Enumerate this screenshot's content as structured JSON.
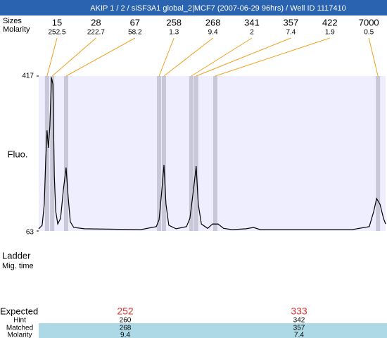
{
  "title": "AKIP 1 / 2 / siSF3A1 global_2|MCF7 (2007-06-29 96hrs) / Well ID 1117410",
  "peak_table": {
    "row_labels": [
      "Sizes",
      "Molarity"
    ],
    "sizes": [
      15,
      28,
      67,
      258,
      268,
      341,
      357,
      422,
      7000
    ],
    "molarity": [
      252.5,
      222.7,
      58.2,
      1.3,
      9.4,
      2,
      7.4,
      1.9,
      0.5
    ],
    "positions": [
      2.4,
      3.9,
      7.9,
      34.7,
      36.1,
      44.0,
      45.4,
      50.9,
      97.8
    ]
  },
  "chart_data": {
    "type": "line",
    "y_label": "Fluo.",
    "ylim": [
      63,
      417
    ],
    "yticks": [
      63,
      417
    ],
    "xlim": [
      0,
      100
    ],
    "x": [
      0,
      1.0,
      1.6,
      2.0,
      2.4,
      2.8,
      3.2,
      3.7,
      4.1,
      4.5,
      4.9,
      5.5,
      6.3,
      7.1,
      7.9,
      8.5,
      9.1,
      10.1,
      13.2,
      29.4,
      33.9,
      34.7,
      35.5,
      36.1,
      36.7,
      37.5,
      39.6,
      42.6,
      43.6,
      44.6,
      45.4,
      46.0,
      46.9,
      48.7,
      50.1,
      51.7,
      53.3,
      55.8,
      59.8,
      61.9,
      63.9,
      80.1,
      90.3,
      95.3,
      96.6,
      97.4,
      98.4,
      99.4,
      100
    ],
    "values": [
      68,
      76,
      124,
      221,
      293,
      253,
      301,
      414,
      398,
      189,
      108,
      79,
      92,
      156,
      208,
      140,
      84,
      71,
      68,
      66,
      73,
      89,
      156,
      214,
      124,
      76,
      68,
      73,
      92,
      156,
      211,
      124,
      79,
      69,
      79,
      79,
      69,
      66,
      68,
      71,
      66,
      66,
      66,
      73,
      108,
      137,
      124,
      92,
      79
    ],
    "color": "#000000",
    "background": "#eeeeff",
    "marker_color": "#c8c8d8"
  },
  "ladder": {
    "labels": [
      "Ladder",
      "Mig. time"
    ]
  },
  "expected_table": {
    "row_labels": [
      "Expected",
      "Hint",
      "Matched",
      "Molarity"
    ],
    "rows": [
      [
        252,
        333
      ],
      [
        260,
        342
      ],
      [
        268,
        357
      ],
      [
        9.4,
        7.4
      ]
    ]
  }
}
